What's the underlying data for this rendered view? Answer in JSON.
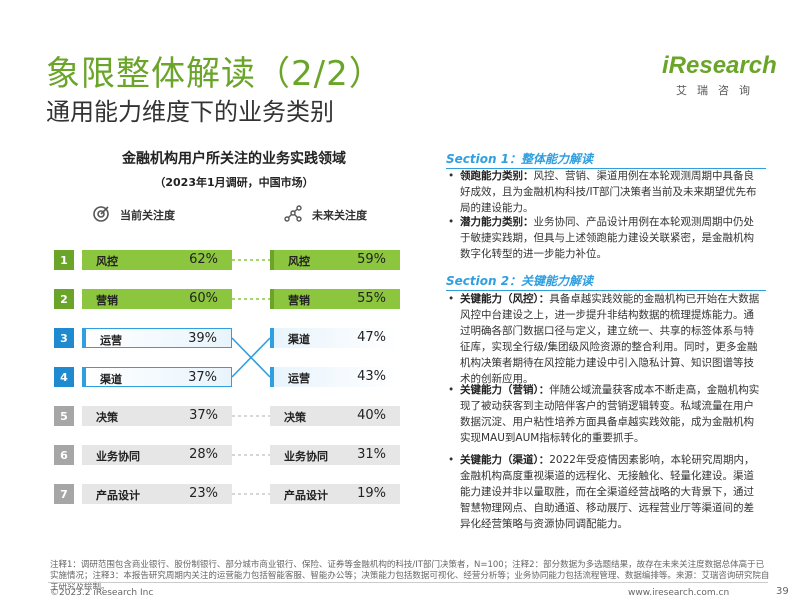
{
  "header": {
    "title": "象限整体解读（2/2）",
    "subtitle": "通用能力维度下的业务类别",
    "logo_brand": "iResearch",
    "logo_tagline": "艾瑞咨询"
  },
  "chart": {
    "title": "金融机构用户所关注的业务实践领域",
    "subtitle": "（2023年1月调研，中国市场）",
    "left_header": "当前关注度",
    "right_header": "未来关注度"
  },
  "chart_data": {
    "type": "table",
    "title": "金融机构用户所关注的业务实践领域",
    "subtitle": "（2023年1月调研，中国市场）",
    "current": {
      "name": "当前关注度",
      "rows": [
        {
          "rank": "1",
          "label": "风控",
          "value": "62%"
        },
        {
          "rank": "2",
          "label": "营销",
          "value": "60%"
        },
        {
          "rank": "3",
          "label": "运营",
          "value": "39%"
        },
        {
          "rank": "4",
          "label": "渠道",
          "value": "37%"
        },
        {
          "rank": "5",
          "label": "决策",
          "value": "37%"
        },
        {
          "rank": "6",
          "label": "业务协同",
          "value": "28%"
        },
        {
          "rank": "7",
          "label": "产品设计",
          "value": "23%"
        }
      ]
    },
    "future": {
      "name": "未来关注度",
      "rows": [
        {
          "label": "风控",
          "value": "59%"
        },
        {
          "label": "营销",
          "value": "55%"
        },
        {
          "label": "渠道",
          "value": "47%"
        },
        {
          "label": "运营",
          "value": "43%"
        },
        {
          "label": "决策",
          "value": "40%"
        },
        {
          "label": "业务协同",
          "value": "31%"
        },
        {
          "label": "产品设计",
          "value": "19%"
        }
      ]
    },
    "colors": {
      "highlight": "#8cc63f",
      "highlight_num": "#6aa52a",
      "accent": "#2f9fe0",
      "accent_num": "#1f8ad0",
      "muted": "#e6e6e6",
      "muted_num": "#a6a6a6"
    }
  },
  "sections": [
    {
      "heading": "Section 1：整体能力解读",
      "bullets": [
        {
          "term": "领跑能力类别：",
          "text": "风控、营销、渠道用例在本轮观测周期中具备良好成效，且为金融机构科技/IT部门决策者当前及未来期望优先布局的建设能力。"
        },
        {
          "term": "潜力能力类别：",
          "text": "业务协同、产品设计用例在本轮观测周期中仍处于敏捷实践期，但具与上述领跑能力建设关联紧密，是金融机构数字化转型的进一步能力补位。"
        }
      ]
    },
    {
      "heading": "Section 2：关键能力解读",
      "bullets": [
        {
          "term": "关键能力（风控）：",
          "text": "具备卓越实践效能的金融机构已开始在大数据风控中台建设之上，进一步提升非结构数据的梳理提炼能力。通过明确各部门数据口径与定义，建立统一、共享的标签体系与特征库，实现全行级/集团级风险资源的整合利用。同时，更多金融机构决策者期待在风控能力建设中引入隐私计算、知识图谱等技术的创新应用。"
        },
        {
          "term": "关键能力（营销）：",
          "text": "伴随公域流量获客成本不断走高，金融机构实现了被动获客到主动陪伴客户的营销逻辑转变。私域流量在用户数据沉淀、用户粘性培养方面具备卓越实践效能，成为金融机构实现MAU到AUM指标转化的重要抓手。"
        },
        {
          "term": "关键能力（渠道）：",
          "text": "2022年受疫情因素影响，本轮研究周期内，金融机构高度重视渠道的远程化、无接触化、轻量化建设。渠道能力建设并非以量取胜，而在全渠道经营战略的大背景下，通过智慧物理网点、自助通道、移动展厅、远程营业厅等渠道间的差异化经营策略与资源协同调配能力。"
        }
      ]
    }
  ],
  "footnote": "注释1：调研范围包含商业银行、股份制银行、部分城市商业银行、保险、证券等金融机构的科技/IT部门决策者，N=100；注释2：部分数据为多选题结果，故存在未来关注度数据总体高于已实施情况；注释3：本报告研究周期内关注的运营能力包括智能客服、智能办公等；决策能力包括数据可视化、经营分析等；业务协同能力包括流程管理、数据编排等。来源：艾瑞咨询研究院自主研究及绘制。",
  "footer": {
    "copyright": "©2023.2 iResearch Inc",
    "website": "www.iresearch.com.cn",
    "page": "39"
  }
}
